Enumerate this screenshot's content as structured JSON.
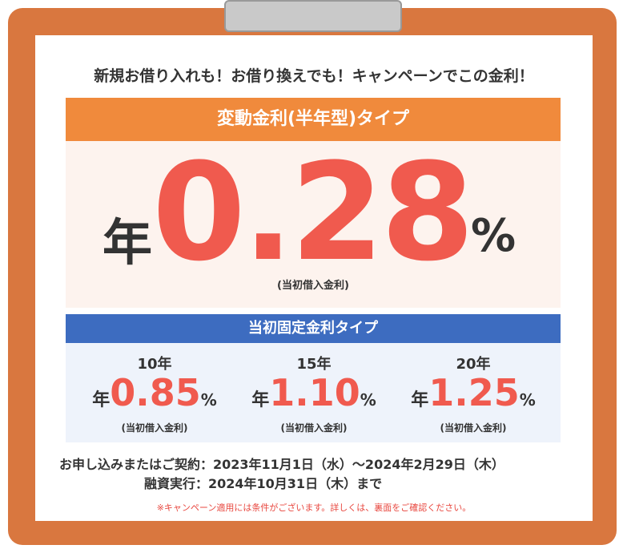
{
  "headline": "新規お借り入れも！お借り換えでも！キャンペーンでこの金利！",
  "variable": {
    "title": "変動金利(半年型)タイプ",
    "prefix": "年",
    "rate": "0.28",
    "unit": "%",
    "note": "(当初借入金利)"
  },
  "fixed": {
    "title": "当初固定金利タイプ",
    "items": [
      {
        "term": "10年",
        "prefix": "年",
        "rate": "0.85",
        "unit": "%",
        "note": "(当初借入金利)"
      },
      {
        "term": "15年",
        "prefix": "年",
        "rate": "1.10",
        "unit": "%",
        "note": "(当初借入金利)"
      },
      {
        "term": "20年",
        "prefix": "年",
        "rate": "1.25",
        "unit": "%",
        "note": "(当初借入金利)"
      }
    ]
  },
  "period": [
    "お申し込みまたはご契約：2023年11月1日（水）～2024年2月29日（木）",
    "融資実行：2024年10月31日（木）まで"
  ],
  "disclaimer": "※キャンペーン適用には条件がございます。詳しくは、裏面をご確認ください。"
}
